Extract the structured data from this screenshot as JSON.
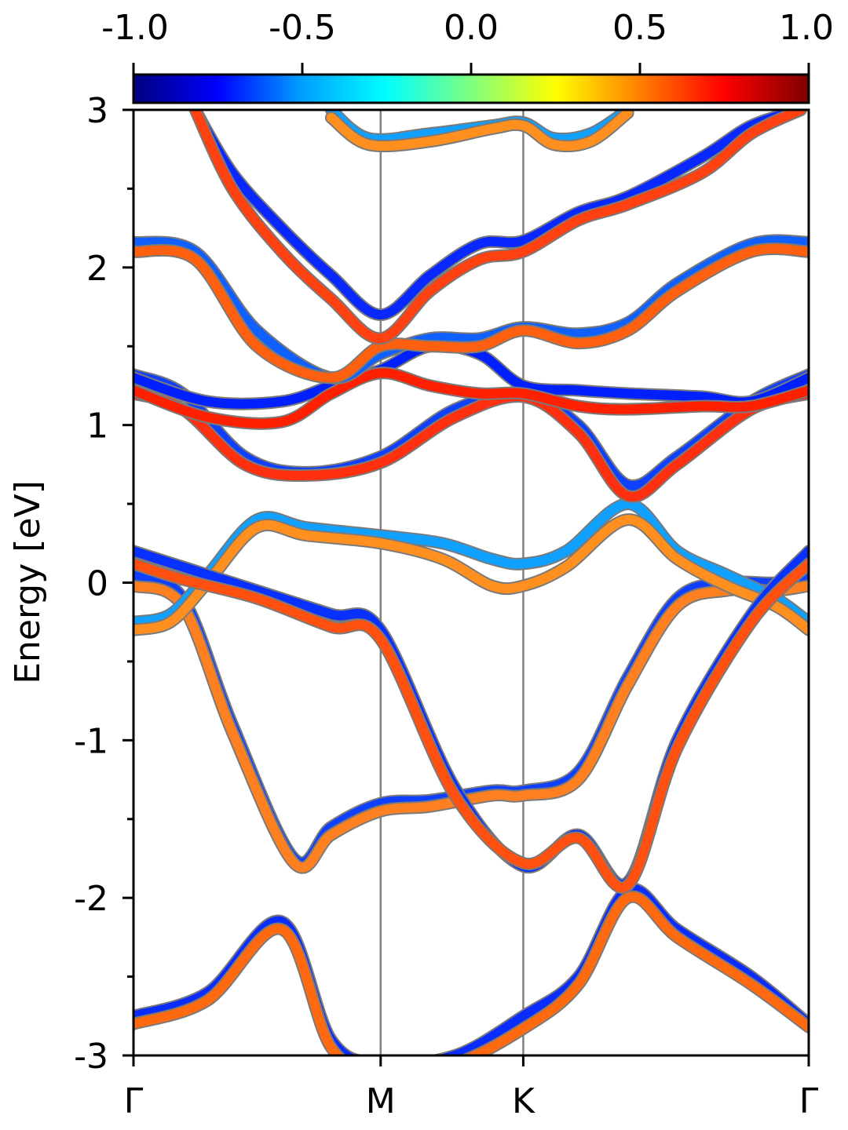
{
  "chart_data": {
    "type": "line",
    "title": "",
    "xlabel": "",
    "ylabel": "Energy [eV]",
    "ylim": [
      -3,
      3
    ],
    "yticks": [
      "3",
      "2",
      "1",
      "0",
      "-1",
      "-2",
      "-3"
    ],
    "kpath": {
      "labels": [
        "Γ",
        "M",
        "K",
        "Γ"
      ],
      "positions": [
        0,
        1,
        1.577,
        2.732
      ]
    },
    "colorbar": {
      "range": [
        -1.0,
        1.0
      ],
      "ticks": [
        "-1.0",
        "-0.5",
        "0.0",
        "0.5",
        "1.0"
      ],
      "colormap": "jet",
      "stops": [
        "#00007f",
        "#0000ff",
        "#00a0ff",
        "#00ffff",
        "#7fff7f",
        "#ffff00",
        "#ff7f00",
        "#ff0000",
        "#7f0000"
      ]
    },
    "series": [
      {
        "color": "#0a2cff",
        "x": [
          0,
          0.3,
          0.6,
          0.8,
          1.0,
          1.3,
          1.577,
          1.8,
          2.0,
          2.2,
          2.5,
          2.732
        ],
        "y": [
          -2.75,
          -2.6,
          -2.15,
          -2.9,
          -3.05,
          -3.0,
          -2.75,
          -2.5,
          -1.95,
          -2.2,
          -2.5,
          -2.8
        ]
      },
      {
        "color": "#ff6a10",
        "x": [
          0,
          0.3,
          0.6,
          0.8,
          1.0,
          1.3,
          1.577,
          1.8,
          2.0,
          2.2,
          2.5,
          2.732
        ],
        "y": [
          -2.8,
          -2.65,
          -2.2,
          -2.95,
          -3.1,
          -3.05,
          -2.83,
          -2.55,
          -2.0,
          -2.25,
          -2.55,
          -2.82
        ]
      },
      {
        "color": "#1040ff",
        "x": [
          0,
          0.2,
          0.4,
          0.65,
          0.8,
          1.0,
          1.2,
          1.45,
          1.577,
          1.8,
          2.0,
          2.2,
          2.4,
          2.6,
          2.732
        ],
        "y": [
          0.05,
          -0.1,
          -0.9,
          -1.75,
          -1.55,
          -1.4,
          -1.38,
          -1.32,
          -1.32,
          -1.2,
          -0.6,
          -0.1,
          0.0,
          0.0,
          0.05
        ]
      },
      {
        "color": "#ff8020",
        "x": [
          0,
          0.2,
          0.4,
          0.65,
          0.8,
          1.0,
          1.2,
          1.45,
          1.577,
          1.8,
          2.0,
          2.2,
          2.4,
          2.6,
          2.732
        ],
        "y": [
          -0.02,
          -0.15,
          -0.95,
          -1.78,
          -1.6,
          -1.45,
          -1.42,
          -1.35,
          -1.35,
          -1.25,
          -0.65,
          -0.15,
          -0.05,
          -0.05,
          -0.02
        ]
      },
      {
        "color": "#10a0ff",
        "x": [
          0,
          0.15,
          0.3,
          0.5,
          0.7,
          1.0,
          1.25,
          1.45,
          1.577,
          1.75,
          2.0,
          2.2,
          2.4,
          2.6,
          2.732
        ],
        "y": [
          -0.25,
          -0.2,
          0.05,
          0.4,
          0.35,
          0.3,
          0.25,
          0.15,
          0.12,
          0.2,
          0.5,
          0.2,
          0.05,
          -0.1,
          -0.25
        ]
      },
      {
        "color": "#ff9020",
        "x": [
          0,
          0.15,
          0.3,
          0.5,
          0.7,
          1.0,
          1.25,
          1.45,
          1.577,
          1.75,
          2.0,
          2.2,
          2.4,
          2.6,
          2.732
        ],
        "y": [
          -0.3,
          -0.25,
          0.0,
          0.35,
          0.3,
          0.25,
          0.15,
          -0.02,
          -0.02,
          0.1,
          0.4,
          0.15,
          -0.02,
          -0.15,
          -0.3
        ]
      },
      {
        "color": "#0830ff",
        "x": [
          0,
          0.2,
          0.5,
          0.8,
          1.0,
          1.3,
          1.577,
          1.8,
          2.0,
          2.2,
          2.5,
          2.732
        ],
        "y": [
          0.2,
          0.1,
          -0.05,
          -0.2,
          -0.3,
          -1.3,
          -1.8,
          -1.6,
          -1.9,
          -1.0,
          -0.2,
          0.2
        ]
      },
      {
        "color": "#ff5010",
        "x": [
          0,
          0.2,
          0.5,
          0.8,
          1.0,
          1.3,
          1.577,
          1.8,
          2.0,
          2.2,
          2.5,
          2.732
        ],
        "y": [
          0.12,
          0.02,
          -0.1,
          -0.28,
          -0.36,
          -1.35,
          -1.78,
          -1.62,
          -1.92,
          -1.05,
          -0.25,
          0.12
        ]
      },
      {
        "color": "#1040ff",
        "x": [
          0,
          0.2,
          0.45,
          0.7,
          1.0,
          1.3,
          1.577,
          1.8,
          2.0,
          2.2,
          2.5,
          2.732
        ],
        "y": [
          1.32,
          1.2,
          0.8,
          0.7,
          0.8,
          1.1,
          1.2,
          1.0,
          0.62,
          0.8,
          1.15,
          1.32
        ]
      },
      {
        "color": "#ff3010",
        "x": [
          0,
          0.2,
          0.45,
          0.7,
          1.0,
          1.3,
          1.577,
          1.8,
          2.0,
          2.2,
          2.5,
          2.732
        ],
        "y": [
          1.2,
          1.1,
          0.75,
          0.68,
          0.76,
          1.05,
          1.18,
          0.95,
          0.55,
          0.75,
          1.1,
          1.2
        ]
      },
      {
        "color": "#0020ff",
        "x": [
          0,
          0.3,
          0.6,
          0.8,
          1.0,
          1.2,
          1.4,
          1.577,
          1.8,
          2.0,
          2.3,
          2.5,
          2.732
        ],
        "y": [
          1.3,
          1.15,
          1.15,
          1.25,
          1.35,
          1.5,
          1.45,
          1.25,
          1.22,
          1.2,
          1.18,
          1.15,
          1.3
        ]
      },
      {
        "color": "#ff2000",
        "x": [
          0,
          0.3,
          0.6,
          0.8,
          1.0,
          1.2,
          1.4,
          1.577,
          1.8,
          2.0,
          2.3,
          2.5,
          2.732
        ],
        "y": [
          1.22,
          1.05,
          1.02,
          1.2,
          1.33,
          1.25,
          1.2,
          1.2,
          1.12,
          1.1,
          1.12,
          1.12,
          1.22
        ]
      },
      {
        "color": "#1060ff",
        "x": [
          0,
          0.25,
          0.5,
          0.8,
          1.0,
          1.2,
          1.4,
          1.577,
          1.8,
          2.0,
          2.2,
          2.5,
          2.732
        ],
        "y": [
          2.16,
          2.1,
          1.6,
          1.3,
          1.45,
          1.55,
          1.55,
          1.62,
          1.58,
          1.65,
          1.9,
          2.15,
          2.16
        ]
      },
      {
        "color": "#ff6010",
        "x": [
          0,
          0.25,
          0.5,
          0.8,
          1.0,
          1.2,
          1.4,
          1.577,
          1.8,
          2.0,
          2.2,
          2.5,
          2.732
        ],
        "y": [
          2.1,
          2.05,
          1.5,
          1.3,
          1.5,
          1.5,
          1.5,
          1.6,
          1.52,
          1.6,
          1.85,
          2.1,
          2.1
        ]
      },
      {
        "color": "#0828ff",
        "x": [
          0.25,
          0.4,
          0.6,
          0.8,
          1.0,
          1.2,
          1.4,
          1.577,
          1.8,
          2.0,
          2.3,
          2.5,
          2.7
        ],
        "y": [
          3.0,
          2.6,
          2.25,
          1.95,
          1.7,
          1.95,
          2.15,
          2.17,
          2.35,
          2.45,
          2.7,
          2.9,
          3.0
        ]
      },
      {
        "color": "#ff4010",
        "x": [
          0.25,
          0.4,
          0.6,
          0.8,
          1.0,
          1.2,
          1.4,
          1.577,
          1.8,
          2.0,
          2.3,
          2.5,
          2.7
        ],
        "y": [
          3.0,
          2.5,
          2.1,
          1.8,
          1.55,
          1.85,
          2.05,
          2.1,
          2.3,
          2.4,
          2.6,
          2.85,
          3.0
        ]
      },
      {
        "color": "#10a0ff",
        "x": [
          0.8,
          0.95,
          1.2,
          1.45,
          1.577,
          1.7,
          1.85,
          2.0
        ],
        "y": [
          3.0,
          2.82,
          2.85,
          2.9,
          2.92,
          2.82,
          2.85,
          3.0
        ]
      },
      {
        "color": "#ff9020",
        "x": [
          0.8,
          0.95,
          1.2,
          1.45,
          1.577,
          1.7,
          1.85,
          2.0
        ],
        "y": [
          2.95,
          2.78,
          2.8,
          2.88,
          2.9,
          2.78,
          2.8,
          2.98
        ]
      }
    ]
  }
}
